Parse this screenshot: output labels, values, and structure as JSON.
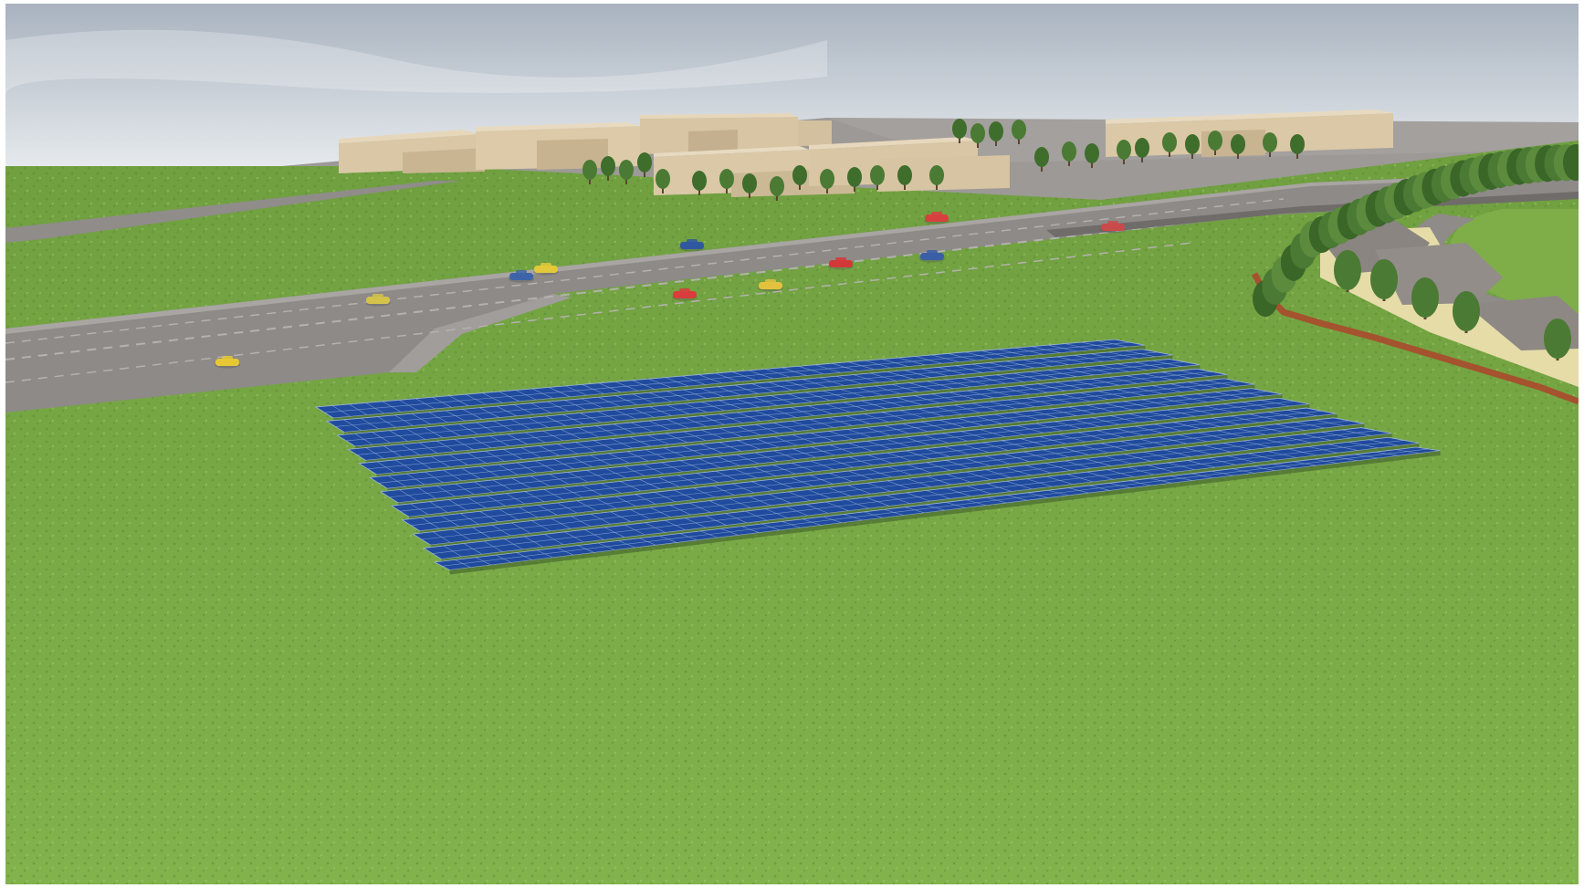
{
  "scene": {
    "subject": "solar-panel-array",
    "setting": "grass-field-beside-highway",
    "palette": {
      "sky_top": "#aab4c0",
      "sky_bottom": "#e8ecef",
      "grass": "#7eae4a",
      "grass_dark": "#5e8f34",
      "road": "#8d8a88",
      "road_edge": "#a6a3a0",
      "lot": "#9a9794",
      "panel": "#1d4c9e",
      "panel_line": "#9fb6dc",
      "building": "#d9c7a6",
      "building_shade": "#c4b08e",
      "tree": "#3f6d2c",
      "fence": "#a4532e",
      "roof": "#8a8580"
    },
    "vehicles": [
      {
        "color": "#e7c834"
      },
      {
        "color": "#d4c24a"
      },
      {
        "color": "#3e64a8"
      },
      {
        "color": "#e3c83a"
      },
      {
        "color": "#2f58a0"
      },
      {
        "color": "#d93c3c"
      },
      {
        "color": "#e2c13e"
      },
      {
        "color": "#d33838"
      },
      {
        "color": "#3b5fa6"
      },
      {
        "color": "#d84040"
      },
      {
        "color": "#c94a4a"
      }
    ]
  }
}
